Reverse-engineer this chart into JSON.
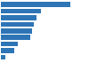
{
  "values": [
    90,
    52,
    46,
    43,
    40,
    38,
    22,
    17,
    6
  ],
  "bar_color": "#2e75b6",
  "background_color": "#ffffff",
  "grid_color": "#d9d9d9",
  "figsize": [
    1.0,
    0.71
  ],
  "dpi": 100,
  "bar_height": 0.75
}
